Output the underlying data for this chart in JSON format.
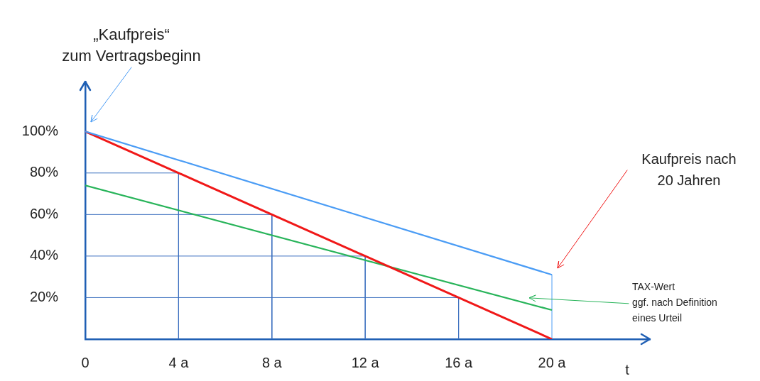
{
  "chart_data": {
    "type": "line",
    "xlabel": "t",
    "xlim": [
      0,
      24.2
    ],
    "xticks": [
      0,
      {
        "value": 4,
        "label": "4 a"
      },
      {
        "value": 8,
        "label": "8 a"
      },
      {
        "value": 12,
        "label": "12 a"
      },
      {
        "value": 16,
        "label": "16 a"
      },
      {
        "value": 20,
        "label": "20 a"
      }
    ],
    "ylim": [
      0,
      124
    ],
    "yticks": [
      {
        "value": 20,
        "label": "20%"
      },
      {
        "value": 40,
        "label": "40%"
      },
      {
        "value": 60,
        "label": "60%"
      },
      {
        "value": 80,
        "label": "80%"
      },
      {
        "value": 100,
        "label": "100%"
      }
    ],
    "grid": false,
    "legend": false,
    "marker": "none",
    "series": [
      {
        "color": "#4a9cf5",
        "x": [
          0,
          20
        ],
        "values": [
          100,
          31
        ]
      },
      {
        "color": "#f01818",
        "x": [
          0,
          20
        ],
        "values": [
          100,
          0
        ]
      },
      {
        "color": "#28b45a",
        "x": [
          0,
          20
        ],
        "values": [
          74,
          14
        ]
      },
      {
        "color": "#3f72c0",
        "x": [
          0,
          4,
          4
        ],
        "values": [
          80,
          80,
          0
        ]
      },
      {
        "color": "#3f72c0",
        "x": [
          0,
          8,
          8
        ],
        "values": [
          60,
          60,
          0
        ]
      },
      {
        "color": "#3f72c0",
        "x": [
          0,
          12,
          12
        ],
        "values": [
          40,
          40,
          0
        ]
      },
      {
        "color": "#3f72c0",
        "x": [
          0,
          16,
          16
        ],
        "values": [
          20,
          20,
          0
        ]
      },
      {
        "color": "#4a9cf5",
        "x": [
          20,
          20
        ],
        "values": [
          0,
          31
        ]
      }
    ],
    "annotations": [
      "„Kaufpreis“\nzum Vertragsbeginn",
      "Kaufpreis nach\n20 Jahren",
      "TAX-Wert\nggf. nach Definition\neines Urteil"
    ]
  }
}
